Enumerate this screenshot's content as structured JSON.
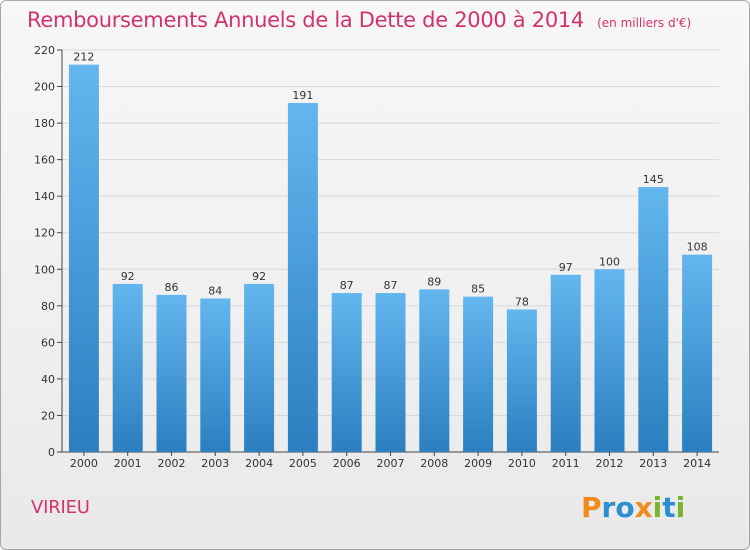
{
  "header": {
    "title": "Remboursements Annuels de la Dette de 2000 à 2014",
    "unit": "(en milliers d'€)"
  },
  "footer": {
    "location": "VIRIEU",
    "logo_text": "Proxiti"
  },
  "colors": {
    "bar_top": "#63b6ee",
    "bar_bottom": "#2b7fc0",
    "accent_pink": "#d1336f",
    "axis": "#444444",
    "grid": "#d8d8d8",
    "logo_orange": "#f28b1d",
    "logo_blue": "#2c8fd0",
    "logo_green": "#78b52d"
  },
  "chart_data": {
    "type": "bar",
    "title": "Remboursements Annuels de la Dette de 2000 à 2014",
    "xlabel": "",
    "ylabel": "",
    "ylim": [
      0,
      220
    ],
    "yticks": [
      0,
      20,
      40,
      60,
      80,
      100,
      120,
      140,
      160,
      180,
      200,
      220
    ],
    "grid": true,
    "categories": [
      "2000",
      "2001",
      "2002",
      "2003",
      "2004",
      "2005",
      "2006",
      "2007",
      "2008",
      "2009",
      "2010",
      "2011",
      "2012",
      "2013",
      "2014"
    ],
    "values": [
      212,
      92,
      86,
      84,
      92,
      191,
      87,
      87,
      89,
      85,
      78,
      97,
      100,
      145,
      108
    ]
  }
}
